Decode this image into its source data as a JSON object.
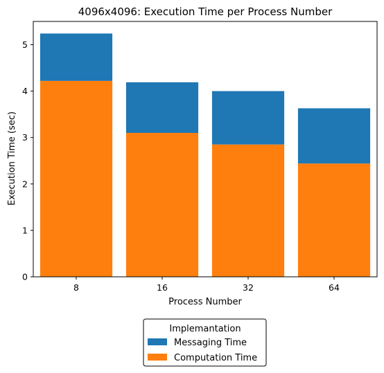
{
  "chart_data": {
    "type": "bar",
    "stacked": true,
    "title": "4096x4096: Execution Time per Process Number",
    "xlabel": "Process Number",
    "ylabel": "Execution Time (sec)",
    "categories": [
      "8",
      "16",
      "32",
      "64"
    ],
    "ylim": [
      0,
      5.5
    ],
    "yticks": [
      0,
      1,
      2,
      3,
      4,
      5
    ],
    "grid": false,
    "series": [
      {
        "name": "Computation Time",
        "color": "#ff7f0e",
        "values": [
          4.22,
          3.1,
          2.85,
          2.44
        ]
      },
      {
        "name": "Messaging Time",
        "color": "#1f77b4",
        "values": [
          1.02,
          1.09,
          1.15,
          1.19
        ]
      }
    ],
    "legend": {
      "title": "Implemantation",
      "placement": "bottom-center-outside",
      "entries": [
        {
          "label": "Messaging Time",
          "color": "#1f77b4"
        },
        {
          "label": "Computation Time",
          "color": "#ff7f0e"
        }
      ]
    }
  }
}
